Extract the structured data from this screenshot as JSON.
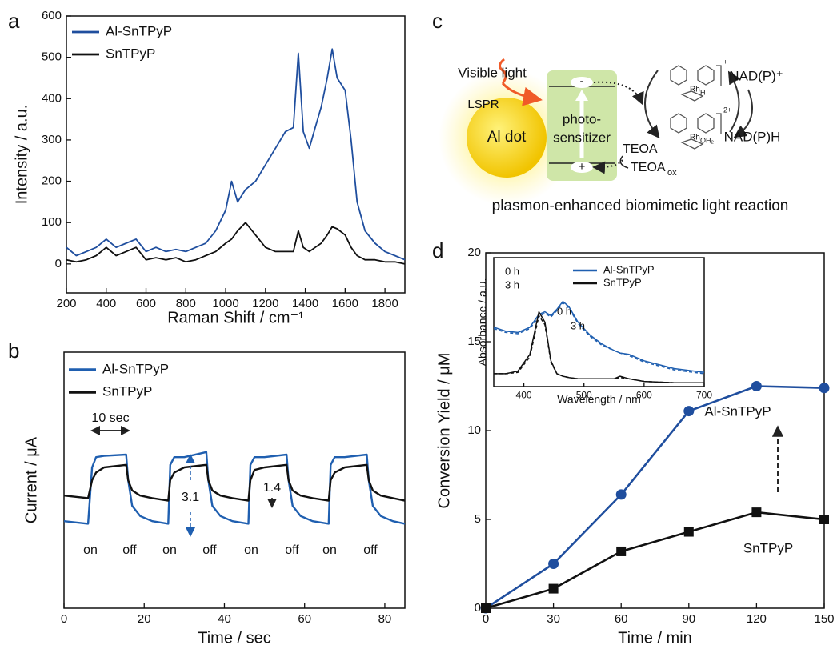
{
  "chart_data": [
    {
      "panel_label": "a",
      "type": "line",
      "xlabel": "Raman Shift / cm⁻¹",
      "ylabel": "Intensity / a.u.",
      "x": [
        200,
        250,
        300,
        350,
        400,
        450,
        500,
        550,
        600,
        650,
        700,
        750,
        800,
        850,
        900,
        950,
        1000,
        1030,
        1060,
        1100,
        1150,
        1200,
        1250,
        1300,
        1340,
        1365,
        1390,
        1420,
        1450,
        1480,
        1510,
        1535,
        1560,
        1600,
        1630,
        1660,
        1700,
        1750,
        1800,
        1850,
        1900
      ],
      "series": [
        {
          "name": "Al-SnTPyP",
          "color": "#1f4e9e",
          "values": [
            40,
            20,
            30,
            40,
            60,
            40,
            50,
            60,
            30,
            40,
            30,
            35,
            30,
            40,
            50,
            80,
            130,
            200,
            150,
            180,
            200,
            240,
            280,
            320,
            330,
            510,
            320,
            280,
            330,
            380,
            450,
            520,
            450,
            420,
            300,
            150,
            80,
            50,
            30,
            20,
            10
          ]
        },
        {
          "name": "SnTPyP",
          "color": "#111111",
          "values": [
            10,
            5,
            10,
            20,
            40,
            20,
            30,
            40,
            10,
            15,
            10,
            15,
            5,
            10,
            20,
            30,
            50,
            60,
            80,
            100,
            70,
            40,
            30,
            30,
            30,
            80,
            40,
            30,
            40,
            50,
            70,
            90,
            85,
            70,
            40,
            20,
            10,
            10,
            5,
            5,
            0
          ]
        }
      ],
      "xlim": [
        200,
        1900
      ],
      "xticks": [
        200,
        400,
        600,
        800,
        1000,
        1200,
        1400,
        1600,
        1800
      ],
      "ylim": [
        -70,
        600
      ],
      "yticks": [
        0,
        100,
        200,
        300,
        400,
        500,
        600
      ],
      "legend": "upper left"
    },
    {
      "panel_label": "b",
      "type": "line",
      "xlabel": "Time / sec",
      "ylabel": "Current / μA",
      "x": [
        0,
        6,
        7,
        8,
        10,
        15.5,
        16,
        17,
        19,
        22,
        26,
        26.5,
        27.5,
        30,
        35.5,
        36,
        37,
        39,
        42,
        46,
        46.5,
        47.5,
        50,
        55.5,
        56,
        57,
        59,
        62,
        66,
        66.5,
        67.5,
        70,
        75.5,
        76,
        77,
        79,
        82,
        85
      ],
      "series": [
        {
          "name": "Al-SnTPyP",
          "color": "#1f5fb0",
          "values": [
            3.4,
            3.3,
            5.5,
            5.9,
            5.95,
            6.0,
            5.0,
            4.0,
            3.6,
            3.4,
            3.3,
            5.6,
            5.9,
            5.9,
            6.1,
            5.0,
            4.0,
            3.6,
            3.4,
            3.3,
            5.6,
            5.9,
            5.9,
            6.0,
            5.0,
            4.0,
            3.6,
            3.4,
            3.3,
            5.6,
            5.9,
            5.9,
            6.0,
            5.0,
            4.0,
            3.6,
            3.4,
            3.3
          ]
        },
        {
          "name": "SnTPyP",
          "color": "#111111",
          "values": [
            4.4,
            4.3,
            5.0,
            5.3,
            5.5,
            5.6,
            5.0,
            4.6,
            4.4,
            4.3,
            4.2,
            5.0,
            5.3,
            5.5,
            5.6,
            5.0,
            4.6,
            4.4,
            4.3,
            4.2,
            5.0,
            5.4,
            5.5,
            5.6,
            5.0,
            4.6,
            4.4,
            4.3,
            4.2,
            5.0,
            5.3,
            5.5,
            5.6,
            5.0,
            4.6,
            4.4,
            4.3,
            4.2
          ]
        }
      ],
      "xlim": [
        0,
        85
      ],
      "xticks": [
        0,
        20,
        40,
        60,
        80
      ],
      "ylim": [
        0,
        10
      ],
      "legend": "upper left",
      "annotations": [
        "10 sec",
        "3.1",
        "1.4"
      ],
      "switch_labels": [
        "on",
        "off",
        "on",
        "off",
        "on",
        "off",
        "on",
        "off"
      ]
    },
    {
      "panel_label": "d",
      "type": "line",
      "markers": true,
      "xlabel": "Time / min",
      "ylabel": "Conversion Yield / μM",
      "x": [
        0,
        30,
        60,
        90,
        120,
        150
      ],
      "series": [
        {
          "name": "Al-SnTPyP",
          "color": "#1f4e9e",
          "marker": "circle",
          "values": [
            0,
            2.5,
            6.4,
            11.1,
            12.5,
            12.4
          ]
        },
        {
          "name": "SnTPyP",
          "color": "#111111",
          "marker": "square",
          "values": [
            0,
            1.1,
            3.2,
            4.3,
            5.4,
            5.0
          ]
        }
      ],
      "xlim": [
        0,
        150
      ],
      "xticks": [
        0,
        30,
        60,
        90,
        120,
        150
      ],
      "ylim": [
        0,
        20
      ],
      "yticks": [
        0,
        5,
        10,
        15,
        20
      ],
      "inset": {
        "type": "line",
        "xlabel": "Wavelength / nm",
        "ylabel": "Absorbance / a.u.",
        "x": [
          350,
          370,
          390,
          410,
          425,
          435,
          445,
          455,
          465,
          475,
          490,
          510,
          530,
          550,
          560,
          575,
          600,
          650,
          700
        ],
        "series": [
          {
            "name": "Al-SnTPyP",
            "color": "#1f5fb0",
            "values": [
              0.46,
              0.43,
              0.42,
              0.46,
              0.56,
              0.58,
              0.55,
              0.6,
              0.66,
              0.62,
              0.5,
              0.4,
              0.33,
              0.28,
              0.26,
              0.25,
              0.2,
              0.14,
              0.11
            ]
          },
          {
            "color": "#1f5fb0",
            "dash": true,
            "values": [
              0.45,
              0.42,
              0.41,
              0.45,
              0.54,
              0.57,
              0.54,
              0.59,
              0.65,
              0.61,
              0.49,
              0.39,
              0.32,
              0.28,
              0.26,
              0.24,
              0.19,
              0.13,
              0.1
            ]
          },
          {
            "name": "SnTPyP",
            "color": "#111111",
            "values": [
              0.1,
              0.1,
              0.12,
              0.25,
              0.58,
              0.5,
              0.2,
              0.1,
              0.08,
              0.07,
              0.06,
              0.06,
              0.06,
              0.06,
              0.08,
              0.06,
              0.04,
              0.03,
              0.03
            ]
          },
          {
            "color": "#111111",
            "dash": true,
            "values": [
              0.1,
              0.1,
              0.11,
              0.23,
              0.55,
              0.48,
              0.19,
              0.1,
              0.08,
              0.07,
              0.06,
              0.06,
              0.06,
              0.06,
              0.07,
              0.06,
              0.04,
              0.03,
              0.03
            ]
          }
        ],
        "xlim": [
          350,
          700
        ],
        "xticks": [
          400,
          500,
          600,
          700
        ],
        "ylim": [
          0,
          1
        ],
        "legend": "upper right",
        "annotations": [
          "0 h",
          "3 h",
          "0 h",
          "3 h"
        ]
      }
    }
  ],
  "diagram": {
    "panel_label": "c",
    "light": "Visible light",
    "plasmon": "LSPR",
    "particle": "Al dot",
    "sensitizer": [
      "photo-",
      "sensitizer"
    ],
    "electron": "-",
    "hole": "+",
    "donor": "TEOA",
    "donor_oxidized": {
      "text": "TEOA",
      "subscript": "ox"
    },
    "cofactor_oxidized": "NAD(P)⁺",
    "cofactor_reduced": "NAD(P)H",
    "complexes": [
      {
        "metal": "Rh",
        "ligand": "H",
        "charge": "+"
      },
      {
        "metal": "Rh",
        "ligand": "OH₂",
        "charge": "2+"
      }
    ],
    "caption": "plasmon-enhanced biomimetic light reaction"
  }
}
